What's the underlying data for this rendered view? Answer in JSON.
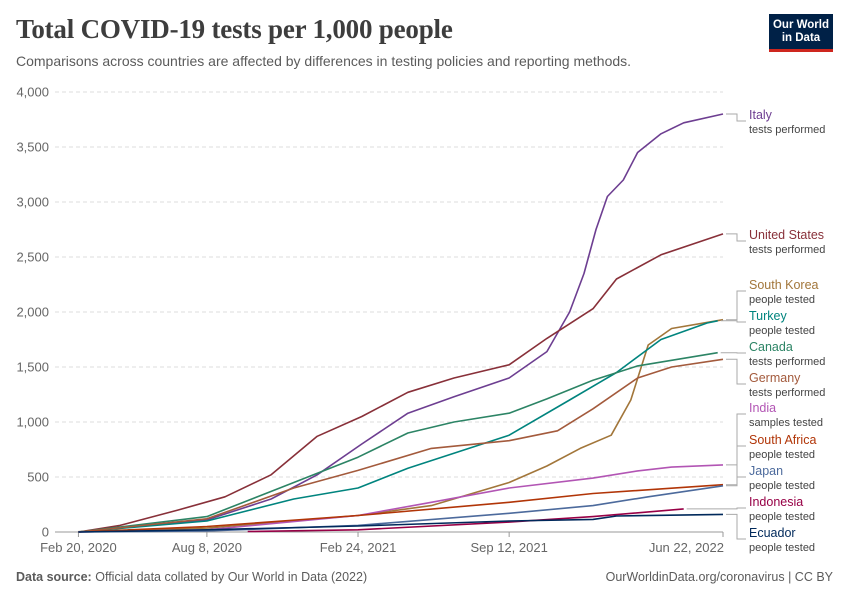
{
  "title": "Total COVID-19 tests per 1,000 people",
  "subtitle": "Comparisons across countries are affected by differences in testing policies and reporting methods.",
  "logo": {
    "line1": "Our World",
    "line2": "in Data"
  },
  "footer": {
    "source_label": "Data source:",
    "source_text": "Official data collated by Our World in Data (2022)",
    "right_text": "OurWorldinData.org/coronavirus | CC BY"
  },
  "chart_data": {
    "type": "line",
    "title": "Total COVID-19 tests per 1,000 people",
    "ylim": [
      0,
      4000
    ],
    "yticks": [
      0,
      500,
      1000,
      1500,
      2000,
      2500,
      3000,
      3500,
      4000
    ],
    "ytick_labels": [
      "0",
      "500",
      "1,000",
      "1,500",
      "2,000",
      "2,500",
      "3,000",
      "3,500",
      "4,000"
    ],
    "xlim": [
      "2020-01-20",
      "2022-06-22"
    ],
    "xticks": [
      "2020-02-20",
      "2020-08-08",
      "2021-02-24",
      "2021-09-12",
      "2022-06-22"
    ],
    "xtick_labels": [
      "Feb 20, 2020",
      "Aug 8, 2020",
      "Feb 24, 2021",
      "Sep 12, 2021",
      "Jun 22, 2022"
    ],
    "grid": "horizontal-dashed",
    "legend": "right-end-labels",
    "series": [
      {
        "name": "Italy",
        "unit": "tests performed",
        "color": "#6d3e91",
        "points": [
          [
            "2020-02-20",
            0
          ],
          [
            "2020-05-01",
            45
          ],
          [
            "2020-08-08",
            110
          ],
          [
            "2020-11-01",
            300
          ],
          [
            "2021-01-01",
            520
          ],
          [
            "2021-03-01",
            800
          ],
          [
            "2021-05-01",
            1080
          ],
          [
            "2021-07-01",
            1230
          ],
          [
            "2021-09-12",
            1400
          ],
          [
            "2021-11-01",
            1640
          ],
          [
            "2021-12-01",
            2000
          ],
          [
            "2021-12-20",
            2350
          ],
          [
            "2022-01-05",
            2750
          ],
          [
            "2022-01-20",
            3050
          ],
          [
            "2022-02-10",
            3200
          ],
          [
            "2022-03-01",
            3450
          ],
          [
            "2022-04-01",
            3620
          ],
          [
            "2022-05-01",
            3720
          ],
          [
            "2022-06-22",
            3800
          ]
        ]
      },
      {
        "name": "United States",
        "unit": "tests performed",
        "color": "#883039",
        "points": [
          [
            "2020-02-20",
            0
          ],
          [
            "2020-04-15",
            60
          ],
          [
            "2020-07-01",
            200
          ],
          [
            "2020-09-01",
            320
          ],
          [
            "2020-11-01",
            520
          ],
          [
            "2021-01-01",
            870
          ],
          [
            "2021-03-01",
            1050
          ],
          [
            "2021-05-01",
            1270
          ],
          [
            "2021-07-01",
            1400
          ],
          [
            "2021-09-12",
            1520
          ],
          [
            "2021-11-01",
            1760
          ],
          [
            "2022-01-01",
            2030
          ],
          [
            "2022-02-01",
            2300
          ],
          [
            "2022-04-01",
            2520
          ],
          [
            "2022-06-22",
            2710
          ]
        ]
      },
      {
        "name": "South Korea",
        "unit": "people tested",
        "color": "#a2763a",
        "points": [
          [
            "2020-02-20",
            3
          ],
          [
            "2020-08-08",
            35
          ],
          [
            "2021-02-24",
            150
          ],
          [
            "2021-06-01",
            240
          ],
          [
            "2021-09-12",
            450
          ],
          [
            "2021-11-01",
            600
          ],
          [
            "2021-12-15",
            760
          ],
          [
            "2022-01-25",
            880
          ],
          [
            "2022-02-20",
            1200
          ],
          [
            "2022-03-15",
            1700
          ],
          [
            "2022-04-15",
            1850
          ],
          [
            "2022-06-22",
            1930
          ]
        ]
      },
      {
        "name": "Turkey",
        "unit": "people tested",
        "color": "#00847e",
        "points": [
          [
            "2020-02-20",
            0
          ],
          [
            "2020-08-08",
            100
          ],
          [
            "2020-12-01",
            300
          ],
          [
            "2021-02-24",
            400
          ],
          [
            "2021-05-01",
            580
          ],
          [
            "2021-09-12",
            880
          ],
          [
            "2021-12-01",
            1200
          ],
          [
            "2022-02-01",
            1450
          ],
          [
            "2022-04-01",
            1750
          ],
          [
            "2022-06-01",
            1900
          ],
          [
            "2022-06-15",
            1920
          ]
        ]
      },
      {
        "name": "Canada",
        "unit": "tests performed",
        "color": "#2c8465",
        "points": [
          [
            "2020-02-20",
            0
          ],
          [
            "2020-08-08",
            140
          ],
          [
            "2020-12-01",
            450
          ],
          [
            "2021-02-24",
            680
          ],
          [
            "2021-05-01",
            900
          ],
          [
            "2021-07-01",
            1000
          ],
          [
            "2021-09-12",
            1080
          ],
          [
            "2021-11-01",
            1210
          ],
          [
            "2022-01-01",
            1380
          ],
          [
            "2022-03-01",
            1510
          ],
          [
            "2022-06-15",
            1630
          ]
        ]
      },
      {
        "name": "Germany",
        "unit": "tests performed",
        "color": "#a35a3c",
        "points": [
          [
            "2020-02-20",
            0
          ],
          [
            "2020-08-08",
            120
          ],
          [
            "2020-12-01",
            400
          ],
          [
            "2021-02-24",
            560
          ],
          [
            "2021-06-01",
            760
          ],
          [
            "2021-09-12",
            830
          ],
          [
            "2021-11-15",
            920
          ],
          [
            "2022-01-01",
            1120
          ],
          [
            "2022-03-01",
            1400
          ],
          [
            "2022-04-15",
            1500
          ],
          [
            "2022-06-22",
            1570
          ]
        ]
      },
      {
        "name": "India",
        "unit": "samples tested",
        "color": "#b255b4",
        "points": [
          [
            "2020-02-20",
            0
          ],
          [
            "2020-08-08",
            20
          ],
          [
            "2021-02-24",
            150
          ],
          [
            "2021-06-01",
            270
          ],
          [
            "2021-09-12",
            400
          ],
          [
            "2022-01-01",
            490
          ],
          [
            "2022-03-01",
            555
          ],
          [
            "2022-04-15",
            590
          ],
          [
            "2022-06-22",
            610
          ]
        ]
      },
      {
        "name": "South Africa",
        "unit": "people tested",
        "color": "#b13507",
        "points": [
          [
            "2020-02-20",
            0
          ],
          [
            "2020-08-08",
            50
          ],
          [
            "2021-02-24",
            150
          ],
          [
            "2021-09-12",
            270
          ],
          [
            "2022-01-01",
            350
          ],
          [
            "2022-06-22",
            430
          ]
        ]
      },
      {
        "name": "Japan",
        "unit": "people tested",
        "color": "#4c6a9c",
        "points": [
          [
            "2020-02-20",
            0
          ],
          [
            "2020-08-08",
            10
          ],
          [
            "2021-02-24",
            60
          ],
          [
            "2021-09-12",
            170
          ],
          [
            "2022-01-01",
            240
          ],
          [
            "2022-03-15",
            320
          ],
          [
            "2022-06-22",
            420
          ]
        ]
      },
      {
        "name": "Indonesia",
        "unit": "people tested",
        "color": "#970046",
        "points": [
          [
            "2020-10-01",
            5
          ],
          [
            "2021-02-24",
            20
          ],
          [
            "2021-09-12",
            90
          ],
          [
            "2022-01-01",
            140
          ],
          [
            "2022-05-01",
            210
          ]
        ]
      },
      {
        "name": "Ecuador",
        "unit": "people tested",
        "color": "#00295b",
        "points": [
          [
            "2020-02-20",
            0
          ],
          [
            "2020-08-08",
            20
          ],
          [
            "2021-02-24",
            55
          ],
          [
            "2021-09-12",
            100
          ],
          [
            "2022-01-01",
            115
          ],
          [
            "2022-02-01",
            145
          ],
          [
            "2022-06-22",
            160
          ]
        ]
      }
    ]
  }
}
